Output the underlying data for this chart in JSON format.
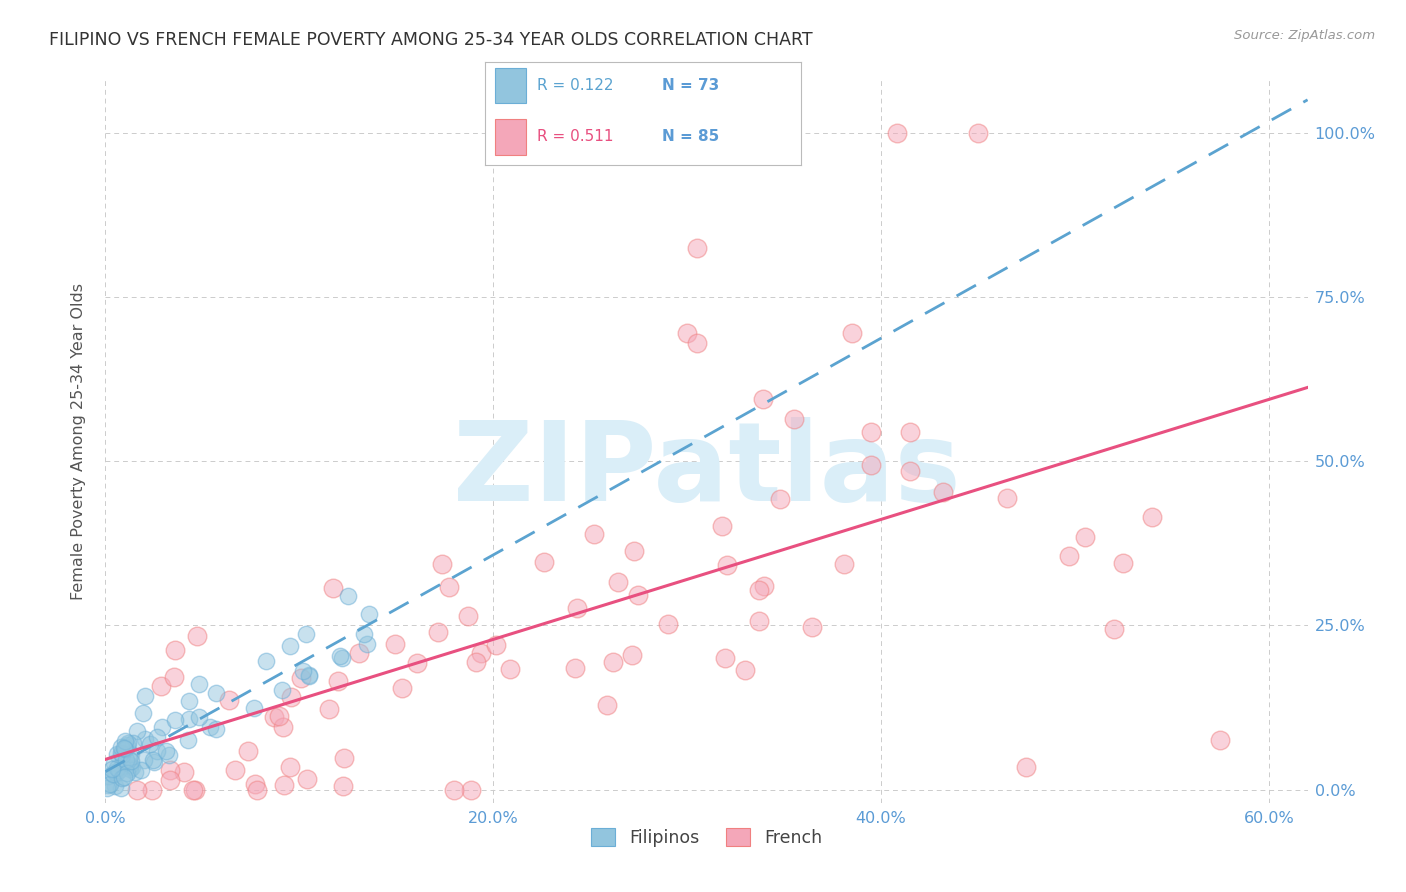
{
  "title": "FILIPINO VS FRENCH FEMALE POVERTY AMONG 25-34 YEAR OLDS CORRELATION CHART",
  "source": "Source: ZipAtlas.com",
  "ylabel_label": "Female Poverty Among 25-34 Year Olds",
  "xlim": [
    0.0,
    0.62
  ],
  "ylim": [
    -0.02,
    1.08
  ],
  "legend_labels": [
    "Filipinos",
    "French"
  ],
  "filipino_R": 0.122,
  "filipino_N": 73,
  "french_R": 0.511,
  "french_N": 85,
  "filipino_color": "#92c5de",
  "french_color": "#f4a7b9",
  "filipino_edge_color": "#6baed6",
  "french_edge_color": "#f08080",
  "filipino_line_color": "#5ba3d0",
  "french_line_color": "#e85080",
  "watermark_color": "#daeef8",
  "background_color": "#ffffff",
  "grid_color": "#cccccc",
  "tick_color": "#5b9bd5",
  "ylabel_color": "#555555",
  "title_color": "#333333",
  "source_color": "#999999"
}
